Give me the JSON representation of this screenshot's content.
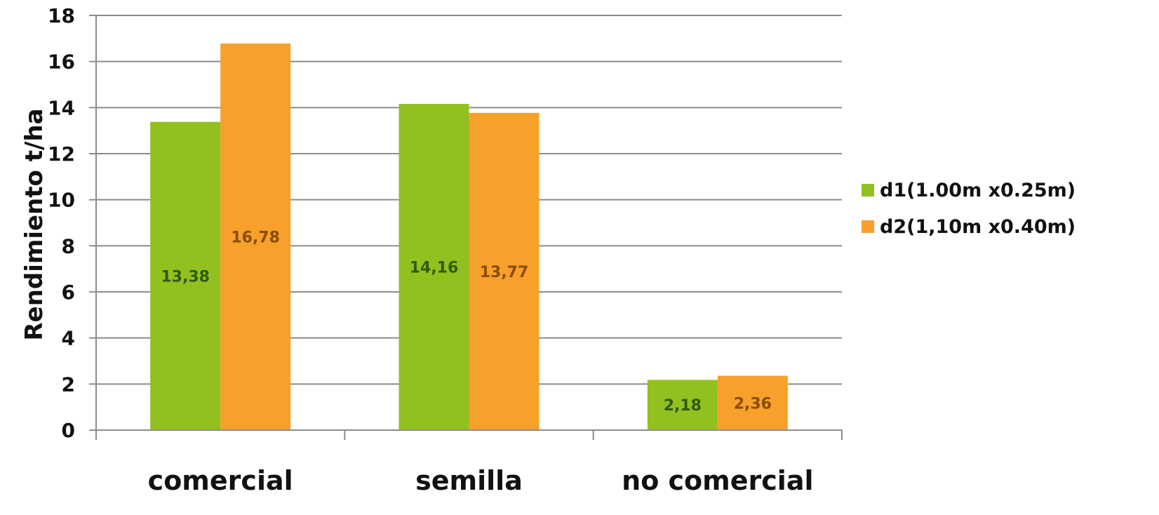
{
  "chart_data": {
    "type": "bar",
    "categories": [
      "comercial",
      "semilla",
      "no comercial"
    ],
    "series": [
      {
        "name": "d1(1.00m x0.25m)",
        "values": [
          13.38,
          14.16,
          2.18
        ],
        "labels": [
          "13,38",
          "14,16",
          "2,18"
        ],
        "color": "#92c01f",
        "label_color": "#2f5a10"
      },
      {
        "name": "d2(1,10m x0.40m)",
        "values": [
          16.78,
          13.77,
          2.36
        ],
        "labels": [
          "16,78",
          "13,77",
          "2,36"
        ],
        "color": "#f7a02b",
        "label_color": "#8a4d05"
      }
    ],
    "ylabel": "Rendimiento t/ha",
    "xlabel": "",
    "ylim": [
      0,
      18
    ],
    "yticks": [
      0,
      2,
      4,
      6,
      8,
      10,
      12,
      14,
      16,
      18
    ],
    "grid": true,
    "legend_position": "right"
  }
}
